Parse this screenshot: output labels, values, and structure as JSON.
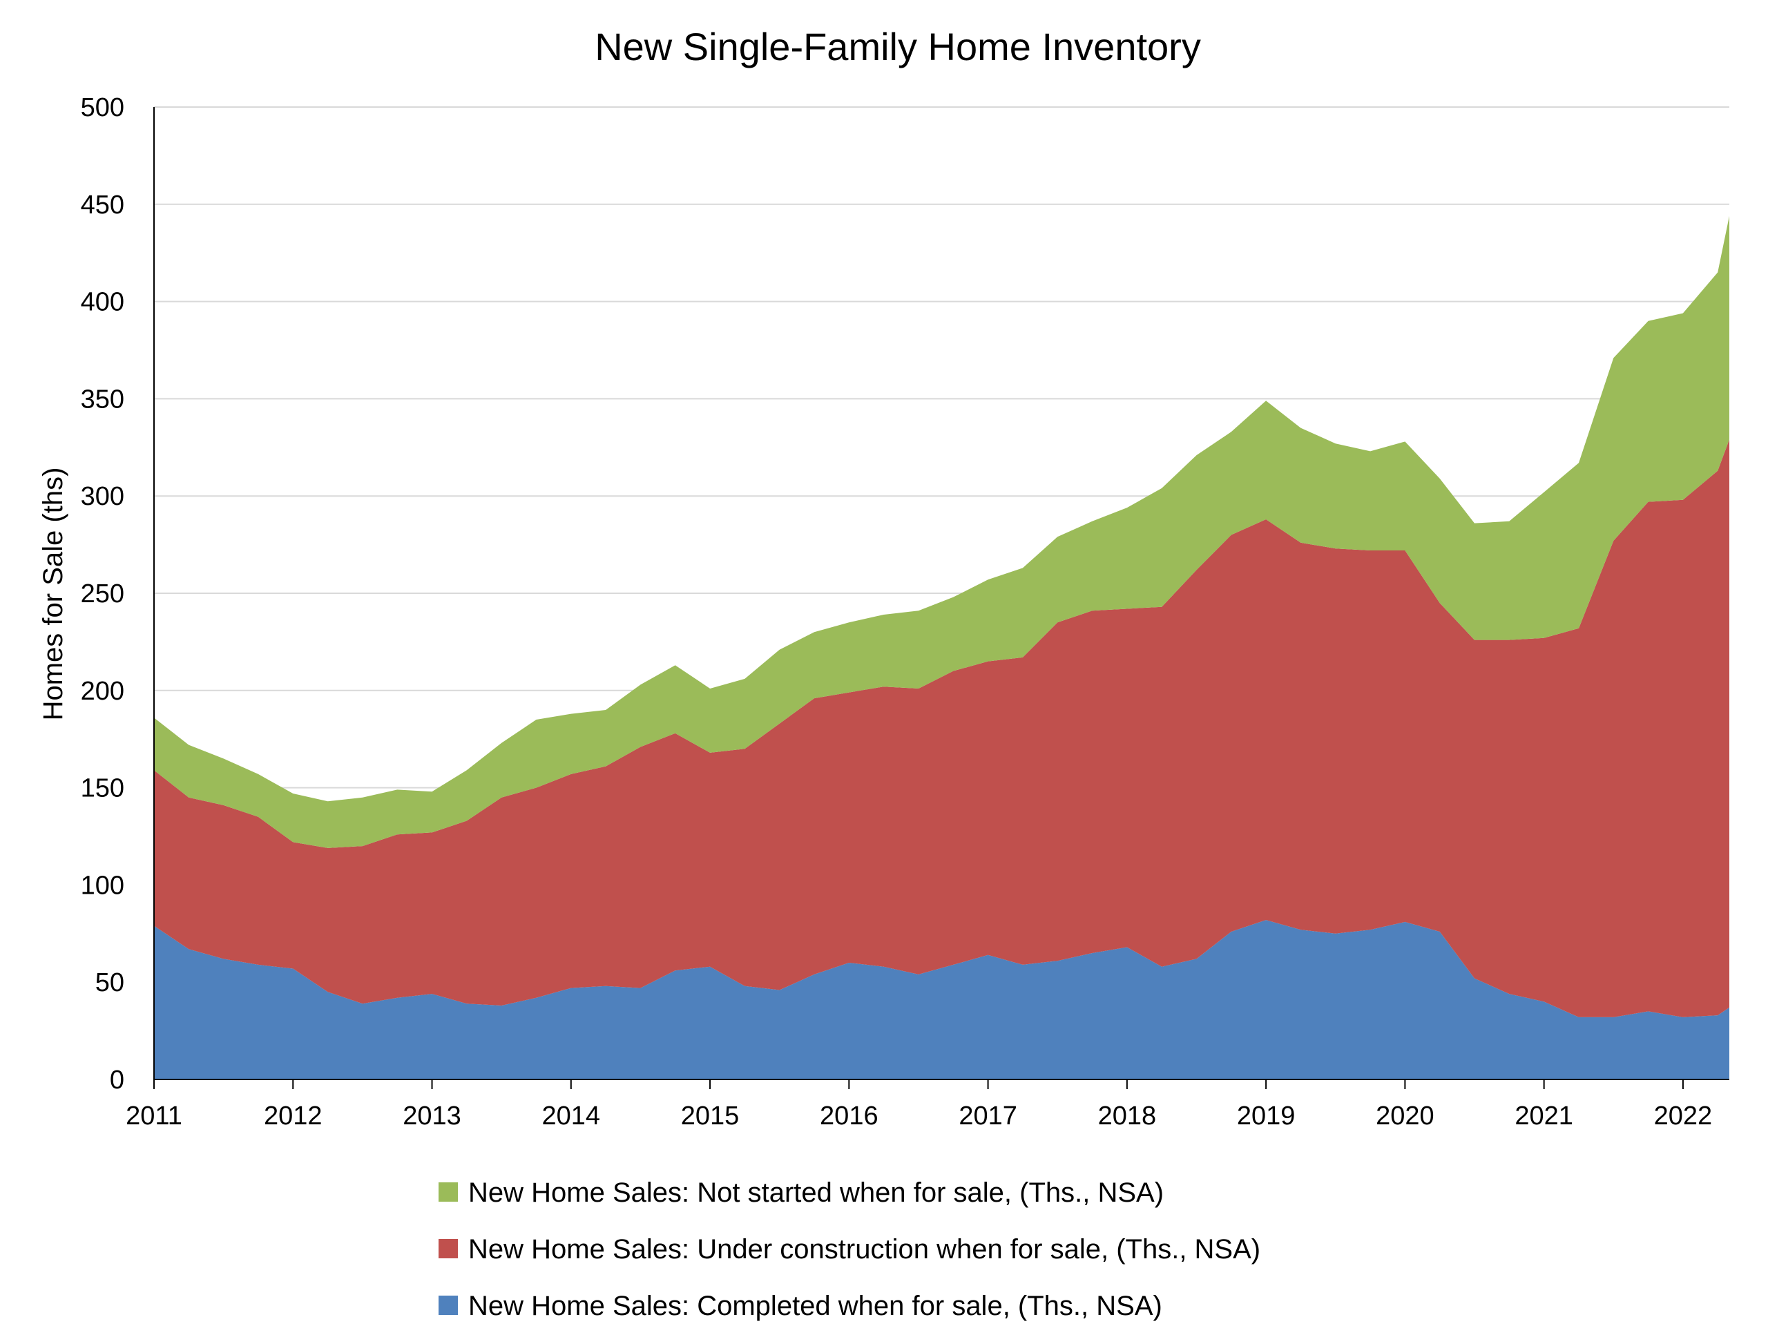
{
  "chart_data": {
    "type": "area",
    "stacked": true,
    "title": "New Single-Family Home Inventory",
    "xlabel": "",
    "ylabel": "Homes for Sale (ths)",
    "ylim": [
      0,
      500
    ],
    "yticks": [
      "0",
      "50",
      "100",
      "150",
      "200",
      "250",
      "300",
      "350",
      "400",
      "450",
      "500"
    ],
    "xlim": [
      2011.0,
      2022.3333
    ],
    "xticks": [
      "2011",
      "2012",
      "2013",
      "2014",
      "2015",
      "2016",
      "2017",
      "2018",
      "2019",
      "2020",
      "2021",
      "2022"
    ],
    "grid": true,
    "legend_position": "bottom",
    "x_points": [
      2011.0,
      2011.25,
      2011.5,
      2011.75,
      2012.0,
      2012.25,
      2012.5,
      2012.75,
      2013.0,
      2013.25,
      2013.5,
      2013.75,
      2014.0,
      2014.25,
      2014.5,
      2014.75,
      2015.0,
      2015.25,
      2015.5,
      2015.75,
      2016.0,
      2016.25,
      2016.5,
      2016.75,
      2017.0,
      2017.25,
      2017.5,
      2017.75,
      2018.0,
      2018.25,
      2018.5,
      2018.75,
      2019.0,
      2019.25,
      2019.5,
      2019.75,
      2020.0,
      2020.25,
      2020.5,
      2020.75,
      2021.0,
      2021.25,
      2021.5,
      2021.75,
      2022.0,
      2022.25,
      2022.3333
    ],
    "series": [
      {
        "name": "New Home Sales: Completed when for sale, (Ths., NSA)",
        "color": "#4f81bd",
        "values": [
          79,
          67,
          62,
          59,
          57,
          45,
          39,
          42,
          44,
          39,
          38,
          42,
          47,
          48,
          47,
          56,
          58,
          48,
          46,
          54,
          60,
          58,
          54,
          59,
          64,
          59,
          61,
          65,
          68,
          58,
          62,
          76,
          82,
          77,
          75,
          77,
          81,
          76,
          52,
          44,
          40,
          32,
          32,
          35,
          32,
          33,
          37
        ]
      },
      {
        "name": "New Home Sales: Under construction when for sale, (Ths., NSA)",
        "color": "#c0504d",
        "values": [
          80,
          78,
          79,
          76,
          65,
          74,
          81,
          84,
          83,
          94,
          107,
          108,
          110,
          113,
          124,
          122,
          110,
          122,
          137,
          142,
          139,
          144,
          147,
          151,
          151,
          158,
          174,
          176,
          174,
          185,
          200,
          204,
          206,
          199,
          198,
          195,
          191,
          169,
          174,
          182,
          187,
          200,
          245,
          262,
          266,
          280,
          292
        ]
      },
      {
        "name": "New Home Sales: Not started when for sale, (Ths., NSA)",
        "color": "#9bbb59",
        "values": [
          27,
          27,
          24,
          22,
          25,
          24,
          25,
          23,
          21,
          26,
          28,
          35,
          31,
          29,
          32,
          35,
          33,
          36,
          38,
          34,
          36,
          37,
          40,
          38,
          42,
          46,
          44,
          46,
          52,
          61,
          59,
          53,
          61,
          59,
          54,
          51,
          56,
          64,
          60,
          61,
          75,
          85,
          94,
          93,
          96,
          102,
          115
        ]
      }
    ]
  }
}
